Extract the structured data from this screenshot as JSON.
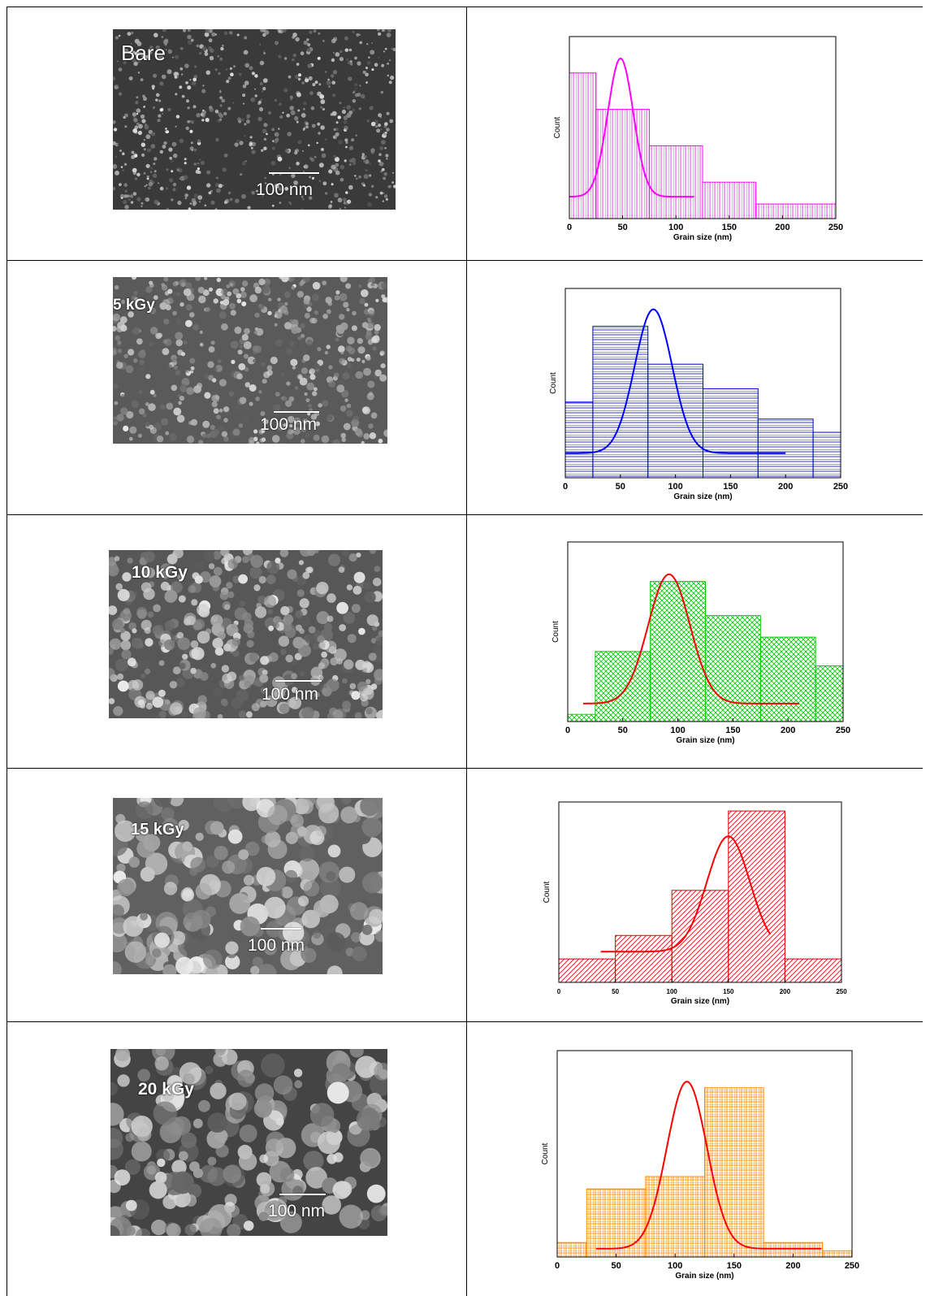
{
  "panels": [
    {
      "sample_label": "Bare",
      "scale_label": "100 nm"
    },
    {
      "sample_label": "5 kGy",
      "scale_label": "100 nm"
    },
    {
      "sample_label": "10 kGy",
      "scale_label": "100 nm"
    },
    {
      "sample_label": "15 kGy",
      "scale_label": "100 nm"
    },
    {
      "sample_label": "20 kGy",
      "scale_label": "100 nm"
    }
  ],
  "chart_data": [
    {
      "type": "bar",
      "xlabel": "Grain size (nm)",
      "ylabel": "Count",
      "xlim": [
        0,
        250
      ],
      "xticks": [
        "0",
        "50",
        "100",
        "150",
        "200",
        "250"
      ],
      "bins": [
        [
          0,
          25
        ],
        [
          25,
          75
        ],
        [
          75,
          125
        ],
        [
          125,
          175
        ],
        [
          175,
          250
        ]
      ],
      "values": [
        0.8,
        0.6,
        0.4,
        0.2,
        0.08
      ],
      "ymax": 1.0,
      "fit": {
        "center": 48,
        "sigma": 12,
        "baseline": 0.12,
        "peak": 0.88,
        "x_range": [
          0,
          117
        ]
      },
      "colors": {
        "bar": "#ff00ff",
        "fit": "#ff00ff"
      },
      "hatch": "vertical"
    },
    {
      "type": "bar",
      "xlabel": "Grain size (nm)",
      "ylabel": "Count",
      "xlim": [
        0,
        250
      ],
      "xticks": [
        "0",
        "50",
        "100",
        "150",
        "200",
        "250"
      ],
      "bins": [
        [
          0,
          25
        ],
        [
          25,
          75
        ],
        [
          75,
          125
        ],
        [
          125,
          175
        ],
        [
          175,
          225
        ],
        [
          225,
          250
        ]
      ],
      "values": [
        0.4,
        0.8,
        0.6,
        0.47,
        0.31,
        0.24
      ],
      "ymax": 1.0,
      "fit": {
        "center": 80,
        "sigma": 17,
        "baseline": 0.13,
        "peak": 0.89,
        "x_range": [
          0,
          200
        ]
      },
      "colors": {
        "bar": "#0000dd",
        "fit": "#0000ff"
      },
      "hatch": "horizontal"
    },
    {
      "type": "bar",
      "xlabel": "Grain size (nm)",
      "ylabel": "Count",
      "xlim": [
        0,
        250
      ],
      "xticks": [
        "0",
        "50",
        "100",
        "150",
        "200",
        "250"
      ],
      "bins": [
        [
          0,
          25
        ],
        [
          25,
          75
        ],
        [
          75,
          125
        ],
        [
          125,
          175
        ],
        [
          175,
          225
        ],
        [
          225,
          250
        ]
      ],
      "values": [
        0.04,
        0.39,
        0.78,
        0.59,
        0.47,
        0.31
      ],
      "ymax": 1.0,
      "fit": {
        "center": 92,
        "sigma": 19,
        "baseline": 0.1,
        "peak": 0.82,
        "x_range": [
          14,
          210
        ]
      },
      "colors": {
        "bar": "#00cc00",
        "fit": "#ff0000"
      },
      "hatch": "cross-diagonal"
    },
    {
      "type": "bar",
      "xlabel": "Grain size (nm)",
      "ylabel": "Count",
      "xlim": [
        0,
        250
      ],
      "xticks": [
        "0",
        "50",
        "100",
        "150",
        "200",
        "250"
      ],
      "bins": [
        [
          0,
          50
        ],
        [
          50,
          100
        ],
        [
          100,
          150
        ],
        [
          150,
          200
        ],
        [
          200,
          250
        ]
      ],
      "values": [
        0.13,
        0.26,
        0.51,
        0.95,
        0.13
      ],
      "ymax": 1.0,
      "fit": {
        "center": 150,
        "sigma": 19,
        "baseline": 0.17,
        "peak": 0.81,
        "x_range": [
          37,
          187
        ]
      },
      "colors": {
        "bar": "#dd0000",
        "fit": "#ff0000"
      },
      "hatch": "diagonal"
    },
    {
      "type": "bar",
      "xlabel": "Grain size (nm)",
      "ylabel": "Count",
      "xlim": [
        0,
        250
      ],
      "xticks": [
        "0",
        "50",
        "100",
        "150",
        "200",
        "250"
      ],
      "bins": [
        [
          0,
          25
        ],
        [
          25,
          75
        ],
        [
          75,
          125
        ],
        [
          125,
          175
        ],
        [
          175,
          225
        ],
        [
          225,
          250
        ]
      ],
      "values": [
        0.07,
        0.33,
        0.39,
        0.82,
        0.07,
        0.03
      ],
      "ymax": 1.0,
      "fit": {
        "center": 110,
        "sigma": 17,
        "baseline": 0.04,
        "peak": 0.85,
        "x_range": [
          33,
          224
        ]
      },
      "colors": {
        "bar": "#ff8c00",
        "fit": "#ff0000"
      },
      "hatch": "grid"
    }
  ]
}
